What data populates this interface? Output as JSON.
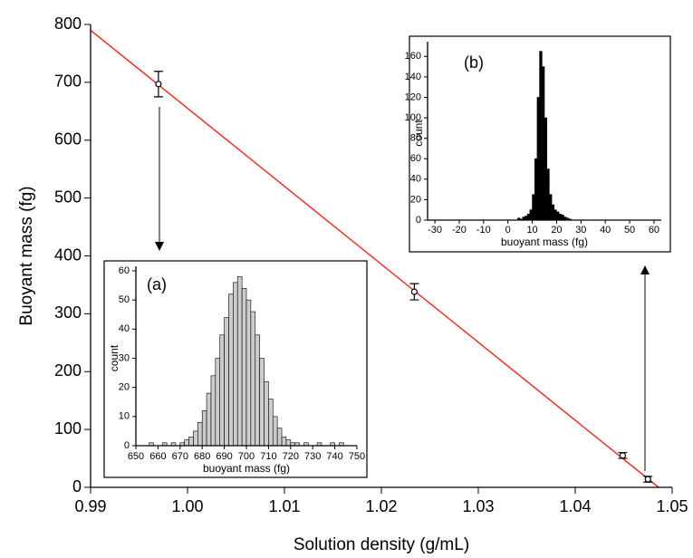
{
  "chart_data": [
    {
      "type": "scatter",
      "xlabel": "Solution density (g/mL)",
      "ylabel": "Buoyant mass (fg)",
      "xlim": [
        0.99,
        1.05
      ],
      "xticks": [
        0.99,
        {
          "value": 1,
          "label": "1.00"
        },
        1.01,
        1.02,
        1.03,
        1.04,
        1.05
      ],
      "ylim": [
        0,
        800
      ],
      "yticks": [
        0,
        100,
        200,
        300,
        400,
        500,
        600,
        700,
        800
      ],
      "series": [
        {
          "color": "#000000",
          "x": [
            0.997,
            1.0234,
            1.0449,
            1.0475
          ],
          "values": [
            697,
            338,
            55,
            14
          ],
          "errors": [
            22,
            14,
            5,
            5
          ]
        }
      ],
      "fit": {
        "color": "#e8322a",
        "x": [
          0.99,
          1.0486
        ],
        "values": [
          790,
          0
        ]
      }
    },
    {
      "type": "histogram",
      "title": "(a)",
      "xlabel": "buoyant mass (fg)",
      "ylabel": "count",
      "color": "#cccccc",
      "xlim": [
        650,
        750
      ],
      "xticks": [
        650,
        660,
        670,
        680,
        690,
        700,
        710,
        720,
        730,
        740,
        750
      ],
      "ylim": [
        0,
        60
      ],
      "yticks": [
        0,
        10,
        20,
        30,
        40,
        50,
        60
      ],
      "bins": [
        650,
        652,
        654,
        656,
        658,
        660,
        662,
        664,
        666,
        668,
        670,
        672,
        674,
        676,
        678,
        680,
        682,
        684,
        686,
        688,
        690,
        692,
        694,
        696,
        698,
        700,
        702,
        704,
        706,
        708,
        710,
        712,
        714,
        716,
        718,
        720,
        722,
        724,
        726,
        728,
        730,
        732,
        734,
        736,
        738,
        740,
        742,
        744,
        746,
        748,
        750
      ],
      "counts": [
        0,
        0,
        0,
        1,
        0,
        0,
        1,
        0,
        1,
        0,
        1,
        2,
        3,
        5,
        8,
        12,
        18,
        24,
        30,
        38,
        44,
        52,
        56,
        58,
        54,
        50,
        46,
        38,
        30,
        22,
        16,
        10,
        6,
        3,
        2,
        1,
        1,
        0,
        1,
        0,
        0,
        1,
        0,
        0,
        1,
        0,
        1,
        0,
        0,
        0
      ]
    },
    {
      "type": "histogram",
      "title": "(b)",
      "xlabel": "buoyant mass (fg)",
      "ylabel": "count",
      "color": "#000000",
      "xlim": [
        -33,
        63
      ],
      "xticks": [
        -30,
        -20,
        -10,
        0,
        10,
        20,
        30,
        40,
        50,
        60
      ],
      "ylim": [
        0,
        170
      ],
      "yticks": [
        0,
        20,
        40,
        60,
        80,
        100,
        120,
        140,
        160
      ],
      "bins": [
        4,
        5,
        6,
        7,
        8,
        9,
        10,
        11,
        12,
        13,
        14,
        15,
        16,
        17,
        18,
        19,
        20,
        21,
        22,
        23,
        24,
        25,
        26
      ],
      "counts": [
        2,
        1,
        3,
        4,
        6,
        10,
        25,
        60,
        120,
        165,
        150,
        100,
        50,
        25,
        15,
        10,
        8,
        6,
        5,
        3,
        2,
        1
      ]
    }
  ]
}
